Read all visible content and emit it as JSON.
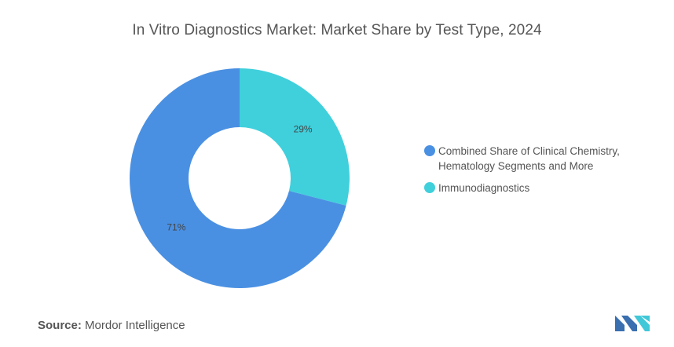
{
  "chart_data": {
    "type": "pie",
    "title": "In Vitro Diagnostics Market: Market Share by Test Type, 2024",
    "donut": true,
    "slices": [
      {
        "label": "Combined Share of Clinical Chemistry, Hematology Segments and More",
        "value": 71,
        "data_label": "71%",
        "color": "#4a90e2"
      },
      {
        "label": "Immunodiagnostics",
        "value": 29,
        "data_label": "29%",
        "color": "#40d0dc"
      }
    ],
    "legend_position": "right"
  },
  "source": {
    "prefix": "Source:",
    "name": "Mordor Intelligence"
  },
  "logo_icon": "mordor-intelligence-logo",
  "colors": {
    "logo_dark": "#3a6fb0",
    "logo_light": "#40c8d8"
  }
}
